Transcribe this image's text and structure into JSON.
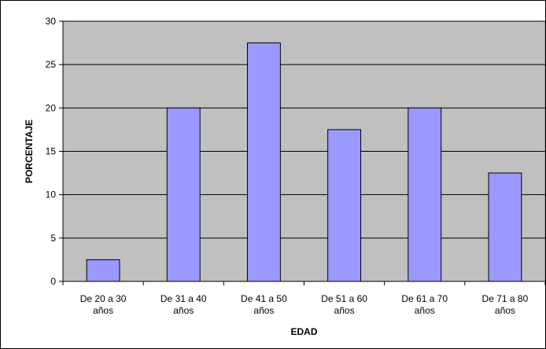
{
  "chart_data": {
    "type": "bar",
    "title": "",
    "xlabel": "EDAD",
    "ylabel": "PORCENTAJE",
    "categories": [
      [
        "De 20 a 30",
        "años"
      ],
      [
        "De 31 a 40",
        "años"
      ],
      [
        "De 41 a 50",
        "años"
      ],
      [
        "De 51 a 60",
        "años"
      ],
      [
        "De 61 a 70",
        "años"
      ],
      [
        "De 71 a 80",
        "años"
      ]
    ],
    "values": [
      2.5,
      20,
      27.5,
      17.5,
      20,
      12.5
    ],
    "ylim": [
      0,
      30
    ],
    "yticks": [
      "0",
      "5",
      "10",
      "15",
      "20",
      "25",
      "30"
    ],
    "grid": true,
    "legend": "none",
    "colors": {
      "bar_fill": "#9999FF",
      "bar_stroke": "#000000",
      "plot_bg": "#C0C0C0",
      "gridline": "#000000"
    }
  }
}
